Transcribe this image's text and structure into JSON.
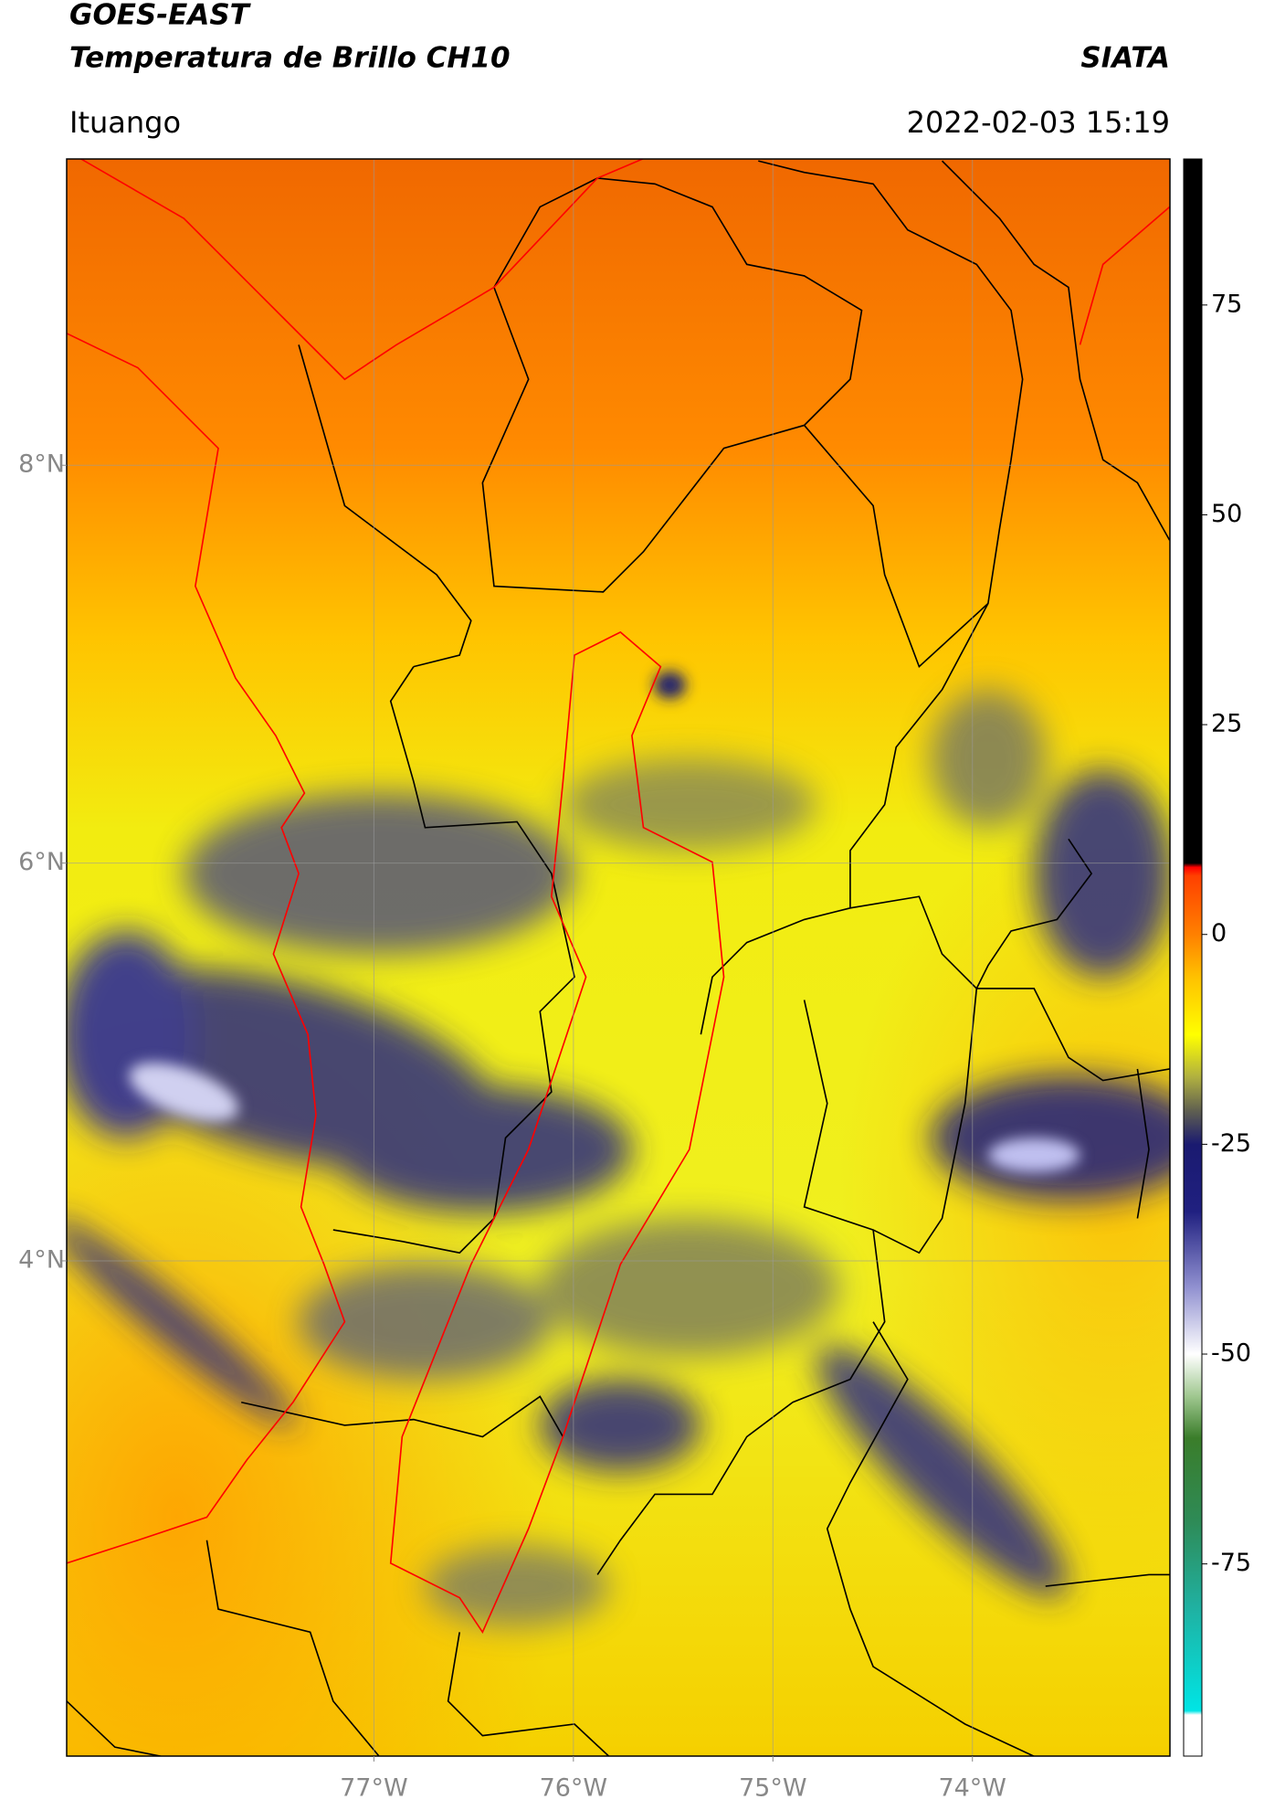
{
  "header": {
    "title": "GOES-EAST",
    "subtitle": "Temperatura de Brillo CH10",
    "brand": "SIATA",
    "location": "Ituango",
    "datetime": "2022-02-03 15:19"
  },
  "map": {
    "xlim": [
      -78.54,
      -73.01
    ],
    "ylim": [
      1.51,
      9.54
    ],
    "xticks": [
      {
        "value": -77,
        "label": "77°W"
      },
      {
        "value": -76,
        "label": "76°W"
      },
      {
        "value": -75,
        "label": "75°W"
      },
      {
        "value": -74,
        "label": "74°W"
      }
    ],
    "yticks": [
      {
        "value": 4,
        "label": "4°N"
      },
      {
        "value": 6,
        "label": "6°N"
      },
      {
        "value": 8,
        "label": "8°N"
      }
    ],
    "grid": true
  },
  "colorbar": {
    "lim": [
      -97.9,
      92.4
    ],
    "ticks": [
      -75,
      -50,
      -25,
      0,
      25,
      50,
      75
    ],
    "colormap": [
      [
        -97.9,
        "#ffffff"
      ],
      [
        -93,
        "#ffffff"
      ],
      [
        -92.5,
        "#00e5e5"
      ],
      [
        -80,
        "#20b0a0"
      ],
      [
        -70,
        "#2e8b57"
      ],
      [
        -60,
        "#3a7d2a"
      ],
      [
        -55,
        "#a0c890"
      ],
      [
        -50,
        "#ffffff"
      ],
      [
        -42,
        "#9090d0"
      ],
      [
        -33,
        "#202080"
      ],
      [
        -25,
        "#1a1a70"
      ],
      [
        -21,
        "#606050"
      ],
      [
        -17,
        "#b0b040"
      ],
      [
        -12,
        "#ffff00"
      ],
      [
        -5,
        "#ffc000"
      ],
      [
        0,
        "#ff8000"
      ],
      [
        7,
        "#ff4000"
      ],
      [
        8,
        "#ff0000"
      ],
      [
        8.5,
        "#000000"
      ],
      [
        92.4,
        "#000000"
      ]
    ]
  }
}
